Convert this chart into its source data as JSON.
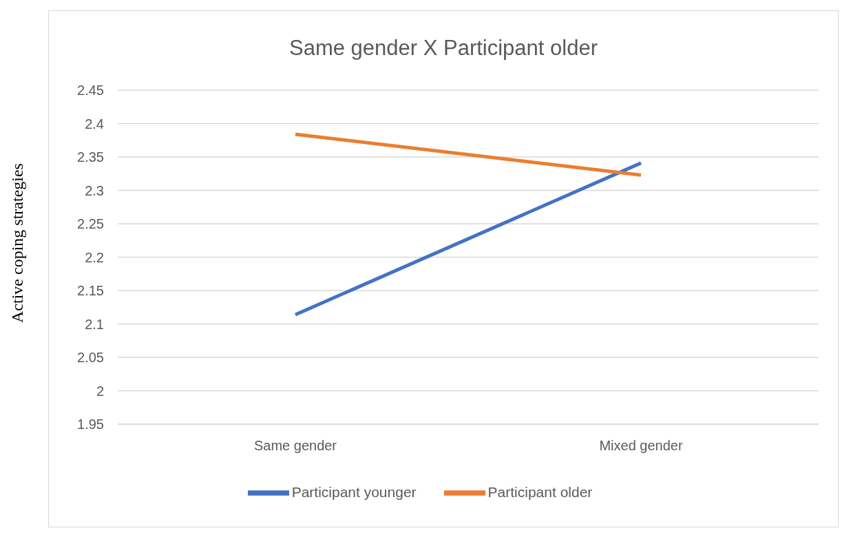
{
  "chart_data": {
    "type": "line",
    "title": "Same gender X Participant older",
    "ylabel": "Active coping strategies",
    "categories": [
      "Same gender",
      "Mixed gender"
    ],
    "series": [
      {
        "name": "Participant younger",
        "color": "#4472c4",
        "values": [
          2.114,
          2.341
        ]
      },
      {
        "name": "Participant older",
        "color": "#ed7d31",
        "values": [
          2.384,
          2.323
        ]
      }
    ],
    "ylim": [
      1.95,
      2.45
    ],
    "yticks": [
      1.95,
      2,
      2.05,
      2.1,
      2.15,
      2.2,
      2.25,
      2.3,
      2.35,
      2.4,
      2.45
    ],
    "grid": "y",
    "legend": "bottom",
    "marker": "none",
    "line_style": "solid"
  }
}
